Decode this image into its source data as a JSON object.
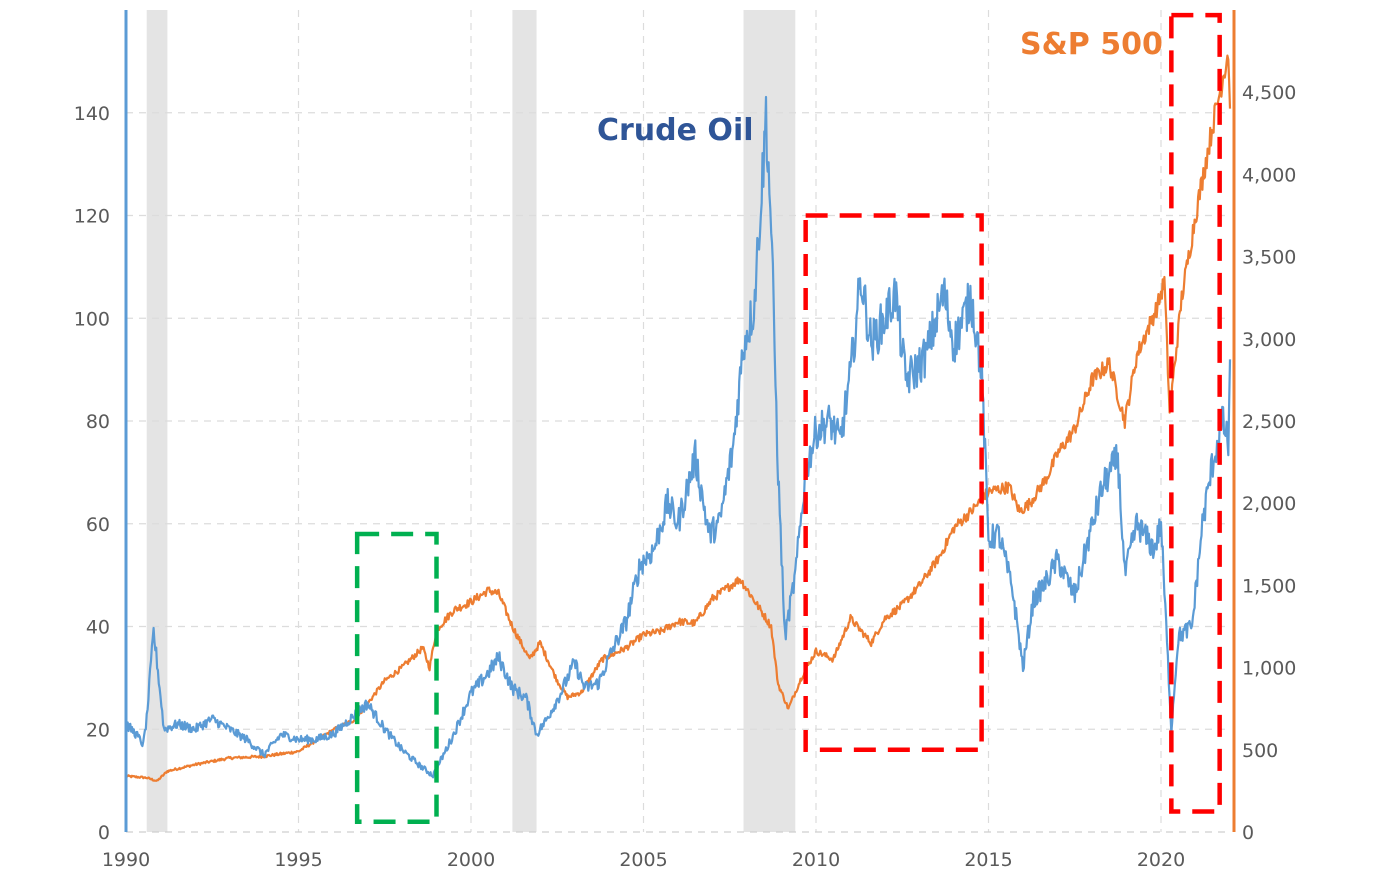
{
  "chart_data": {
    "type": "line",
    "title": "",
    "xlabel": "",
    "ylabel_left": "",
    "ylabel_right": "",
    "xlim": [
      1990,
      2022
    ],
    "ylim_left": [
      0,
      160
    ],
    "ylim_right": [
      0,
      5000
    ],
    "x_ticks": [
      1990,
      1995,
      2000,
      2005,
      2010,
      2015,
      2020
    ],
    "x_tick_labels": [
      "1990",
      "1995",
      "2000",
      "2005",
      "2010",
      "2015",
      "2020"
    ],
    "y_left_ticks": [
      0,
      20,
      40,
      60,
      80,
      100,
      120,
      140
    ],
    "y_left_tick_labels": [
      "0",
      "20",
      "40",
      "60",
      "80",
      "100",
      "120",
      "140"
    ],
    "y_right_ticks": [
      0,
      500,
      1000,
      1500,
      2000,
      2500,
      3000,
      3500,
      4000,
      4500
    ],
    "y_right_tick_labels": [
      "0",
      "500",
      "1,000",
      "1,500",
      "2,000",
      "2,500",
      "3,000",
      "3,500",
      "4,000",
      "4,500"
    ],
    "grid": true,
    "recessions": [
      [
        1990.6,
        1991.2
      ],
      [
        2001.2,
        2001.9
      ],
      [
        2007.9,
        2009.4
      ]
    ],
    "series": [
      {
        "name": "Crude Oil",
        "axis": "left",
        "color": "#5b9bd5",
        "label_color": "#2f5597",
        "points": [
          [
            1990.0,
            21
          ],
          [
            1990.3,
            19
          ],
          [
            1990.5,
            17
          ],
          [
            1990.6,
            22
          ],
          [
            1990.8,
            39
          ],
          [
            1990.9,
            33
          ],
          [
            1991.1,
            20
          ],
          [
            1991.5,
            21
          ],
          [
            1992.0,
            20
          ],
          [
            1992.5,
            22
          ],
          [
            1993.0,
            20
          ],
          [
            1993.5,
            18
          ],
          [
            1994.0,
            15
          ],
          [
            1994.5,
            19
          ],
          [
            1995.0,
            18
          ],
          [
            1995.5,
            18
          ],
          [
            1996.0,
            19
          ],
          [
            1996.5,
            22
          ],
          [
            1997.0,
            25
          ],
          [
            1997.5,
            20
          ],
          [
            1998.0,
            16
          ],
          [
            1998.5,
            13
          ],
          [
            1998.9,
            11
          ],
          [
            1999.5,
            19
          ],
          [
            2000.0,
            27
          ],
          [
            2000.5,
            31
          ],
          [
            2000.8,
            34
          ],
          [
            2001.2,
            28
          ],
          [
            2001.6,
            26
          ],
          [
            2001.9,
            19
          ],
          [
            2002.2,
            22
          ],
          [
            2002.6,
            27
          ],
          [
            2003.0,
            33
          ],
          [
            2003.3,
            28
          ],
          [
            2003.7,
            29
          ],
          [
            2004.0,
            34
          ],
          [
            2004.5,
            41
          ],
          [
            2004.9,
            52
          ],
          [
            2005.3,
            55
          ],
          [
            2005.7,
            64
          ],
          [
            2006.0,
            60
          ],
          [
            2006.5,
            73
          ],
          [
            2006.9,
            58
          ],
          [
            2007.2,
            60
          ],
          [
            2007.6,
            75
          ],
          [
            2007.9,
            95
          ],
          [
            2008.2,
            102
          ],
          [
            2008.5,
            133
          ],
          [
            2008.55,
            140
          ],
          [
            2008.7,
            118
          ],
          [
            2008.9,
            70
          ],
          [
            2009.1,
            38
          ],
          [
            2009.4,
            50
          ],
          [
            2009.7,
            70
          ],
          [
            2010.0,
            78
          ],
          [
            2010.4,
            80
          ],
          [
            2010.7,
            76
          ],
          [
            2011.0,
            89
          ],
          [
            2011.3,
            108
          ],
          [
            2011.6,
            95
          ],
          [
            2012.0,
            100
          ],
          [
            2012.3,
            105
          ],
          [
            2012.6,
            88
          ],
          [
            2012.9,
            90
          ],
          [
            2013.2,
            93
          ],
          [
            2013.7,
            105
          ],
          [
            2014.0,
            95
          ],
          [
            2014.5,
            104
          ],
          [
            2014.8,
            90
          ],
          [
            2015.0,
            57
          ],
          [
            2015.3,
            58
          ],
          [
            2015.7,
            47
          ],
          [
            2016.0,
            32
          ],
          [
            2016.3,
            45
          ],
          [
            2016.7,
            49
          ],
          [
            2017.0,
            53
          ],
          [
            2017.5,
            46
          ],
          [
            2017.9,
            57
          ],
          [
            2018.3,
            67
          ],
          [
            2018.75,
            73
          ],
          [
            2018.95,
            50
          ],
          [
            2019.3,
            60
          ],
          [
            2019.8,
            55
          ],
          [
            2020.0,
            60
          ],
          [
            2020.3,
            20
          ],
          [
            2020.5,
            38
          ],
          [
            2020.9,
            40
          ],
          [
            2021.2,
            60
          ],
          [
            2021.5,
            72
          ],
          [
            2021.8,
            80
          ],
          [
            2021.95,
            75
          ],
          [
            2022.0,
            92
          ]
        ]
      },
      {
        "name": "S&P 500",
        "axis": "right",
        "color": "#ed7d31",
        "label_color": "#ed7d31",
        "points": [
          [
            1990.0,
            340
          ],
          [
            1990.6,
            330
          ],
          [
            1990.9,
            310
          ],
          [
            1991.2,
            370
          ],
          [
            1992.0,
            410
          ],
          [
            1993.0,
            450
          ],
          [
            1994.0,
            460
          ],
          [
            1995.0,
            490
          ],
          [
            1996.0,
            620
          ],
          [
            1996.6,
            680
          ],
          [
            1997.0,
            780
          ],
          [
            1997.5,
            920
          ],
          [
            1998.0,
            1000
          ],
          [
            1998.6,
            1120
          ],
          [
            1998.8,
            1000
          ],
          [
            1999.0,
            1230
          ],
          [
            1999.5,
            1350
          ],
          [
            2000.0,
            1400
          ],
          [
            2000.5,
            1470
          ],
          [
            2000.8,
            1450
          ],
          [
            2001.2,
            1250
          ],
          [
            2001.7,
            1050
          ],
          [
            2002.0,
            1150
          ],
          [
            2002.5,
            920
          ],
          [
            2002.8,
            820
          ],
          [
            2003.2,
            850
          ],
          [
            2003.8,
            1050
          ],
          [
            2004.5,
            1120
          ],
          [
            2005.0,
            1200
          ],
          [
            2005.5,
            1220
          ],
          [
            2006.0,
            1280
          ],
          [
            2006.5,
            1270
          ],
          [
            2007.0,
            1420
          ],
          [
            2007.8,
            1540
          ],
          [
            2008.3,
            1380
          ],
          [
            2008.7,
            1250
          ],
          [
            2008.9,
            900
          ],
          [
            2009.2,
            750
          ],
          [
            2009.6,
            950
          ],
          [
            2010.0,
            1100
          ],
          [
            2010.5,
            1050
          ],
          [
            2011.0,
            1300
          ],
          [
            2011.6,
            1150
          ],
          [
            2012.0,
            1300
          ],
          [
            2012.5,
            1380
          ],
          [
            2013.0,
            1500
          ],
          [
            2013.6,
            1680
          ],
          [
            2014.0,
            1850
          ],
          [
            2014.5,
            1950
          ],
          [
            2015.0,
            2070
          ],
          [
            2015.6,
            2100
          ],
          [
            2015.9,
            1950
          ],
          [
            2016.2,
            2000
          ],
          [
            2016.7,
            2160
          ],
          [
            2017.0,
            2300
          ],
          [
            2017.5,
            2450
          ],
          [
            2018.0,
            2750
          ],
          [
            2018.5,
            2850
          ],
          [
            2018.95,
            2500
          ],
          [
            2019.3,
            2900
          ],
          [
            2019.9,
            3200
          ],
          [
            2020.1,
            3350
          ],
          [
            2020.25,
            2550
          ],
          [
            2020.6,
            3250
          ],
          [
            2021.0,
            3750
          ],
          [
            2021.5,
            4300
          ],
          [
            2021.95,
            4750
          ],
          [
            2022.0,
            4400
          ]
        ]
      }
    ],
    "annotations": [
      {
        "kind": "dashed-box",
        "color": "#00b050",
        "x0": 1996.7,
        "x1": 1999.0,
        "y0": 2,
        "y1": 58
      },
      {
        "kind": "dashed-box",
        "color": "#ff0000",
        "x0": 2009.7,
        "x1": 2014.8,
        "y0": 16,
        "y1": 120
      },
      {
        "kind": "dashed-box",
        "color": "#ff0000",
        "x0": 2020.3,
        "x1": 2021.7,
        "y0": 4,
        "y1": 159
      }
    ]
  }
}
